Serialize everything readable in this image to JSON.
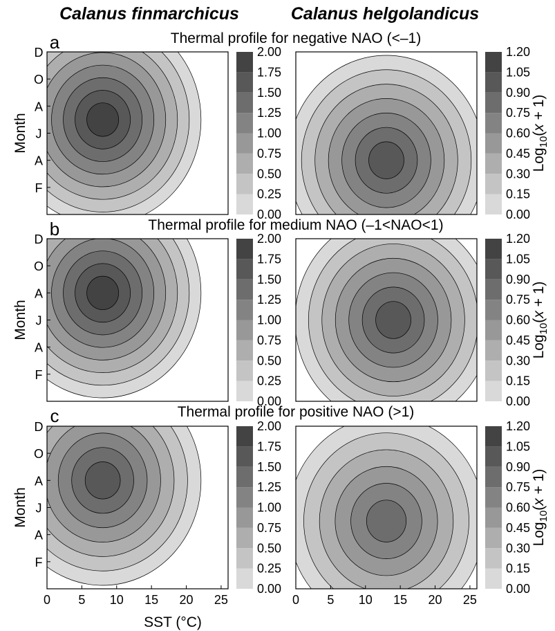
{
  "species": [
    "Calanus finmarchicus",
    "Calanus helgolandicus"
  ],
  "chart_data": {
    "type": "heatmap",
    "xlabel": "SST (°C)",
    "ylabel": "Month",
    "x_ticks": [
      "0",
      "5",
      "10",
      "15",
      "20",
      "25"
    ],
    "xlim": [
      0,
      26
    ],
    "y_ticks": [
      "F",
      "A",
      "J",
      "A",
      "O",
      "D"
    ],
    "colorbar_label_parts": [
      "Log",
      "10",
      "(",
      "x",
      " + 1)"
    ],
    "colorbars": {
      "finmarchicus": [
        "0.00",
        "0.25",
        "0.50",
        "0.75",
        "1.00",
        "1.25",
        "1.50",
        "1.75",
        "2.00"
      ],
      "helgolandicus": [
        "0.00",
        "0.15",
        "0.30",
        "0.45",
        "0.60",
        "0.75",
        "0.90",
        "1.05",
        "1.20"
      ]
    },
    "palette": [
      "#d9d9d9",
      "#c4c4c4",
      "#aeaeae",
      "#989898",
      "#838383",
      "#6d6d6d",
      "#585858",
      "#434343",
      "#2e2e2e"
    ],
    "panels": [
      {
        "label": "a",
        "title": "Thermal profile for negative NAO (<–1)",
        "finmarchicus": {
          "peak": [
            8,
            7
          ],
          "levels": 8
        },
        "helgolandicus": {
          "peak": [
            13,
            4
          ],
          "levels": 7
        }
      },
      {
        "label": "b",
        "title": "Thermal profile for medium NAO (–1<NAO<1)",
        "finmarchicus": {
          "peak": [
            8,
            8
          ],
          "levels": 8
        },
        "helgolandicus": {
          "peak": [
            14,
            6
          ],
          "levels": 7
        }
      },
      {
        "label": "c",
        "title": "Thermal profile for positive NAO (>1)",
        "finmarchicus": {
          "peak": [
            8,
            8
          ],
          "levels": 7
        },
        "helgolandicus": {
          "peak": [
            13,
            5
          ],
          "levels": 6
        }
      }
    ]
  }
}
